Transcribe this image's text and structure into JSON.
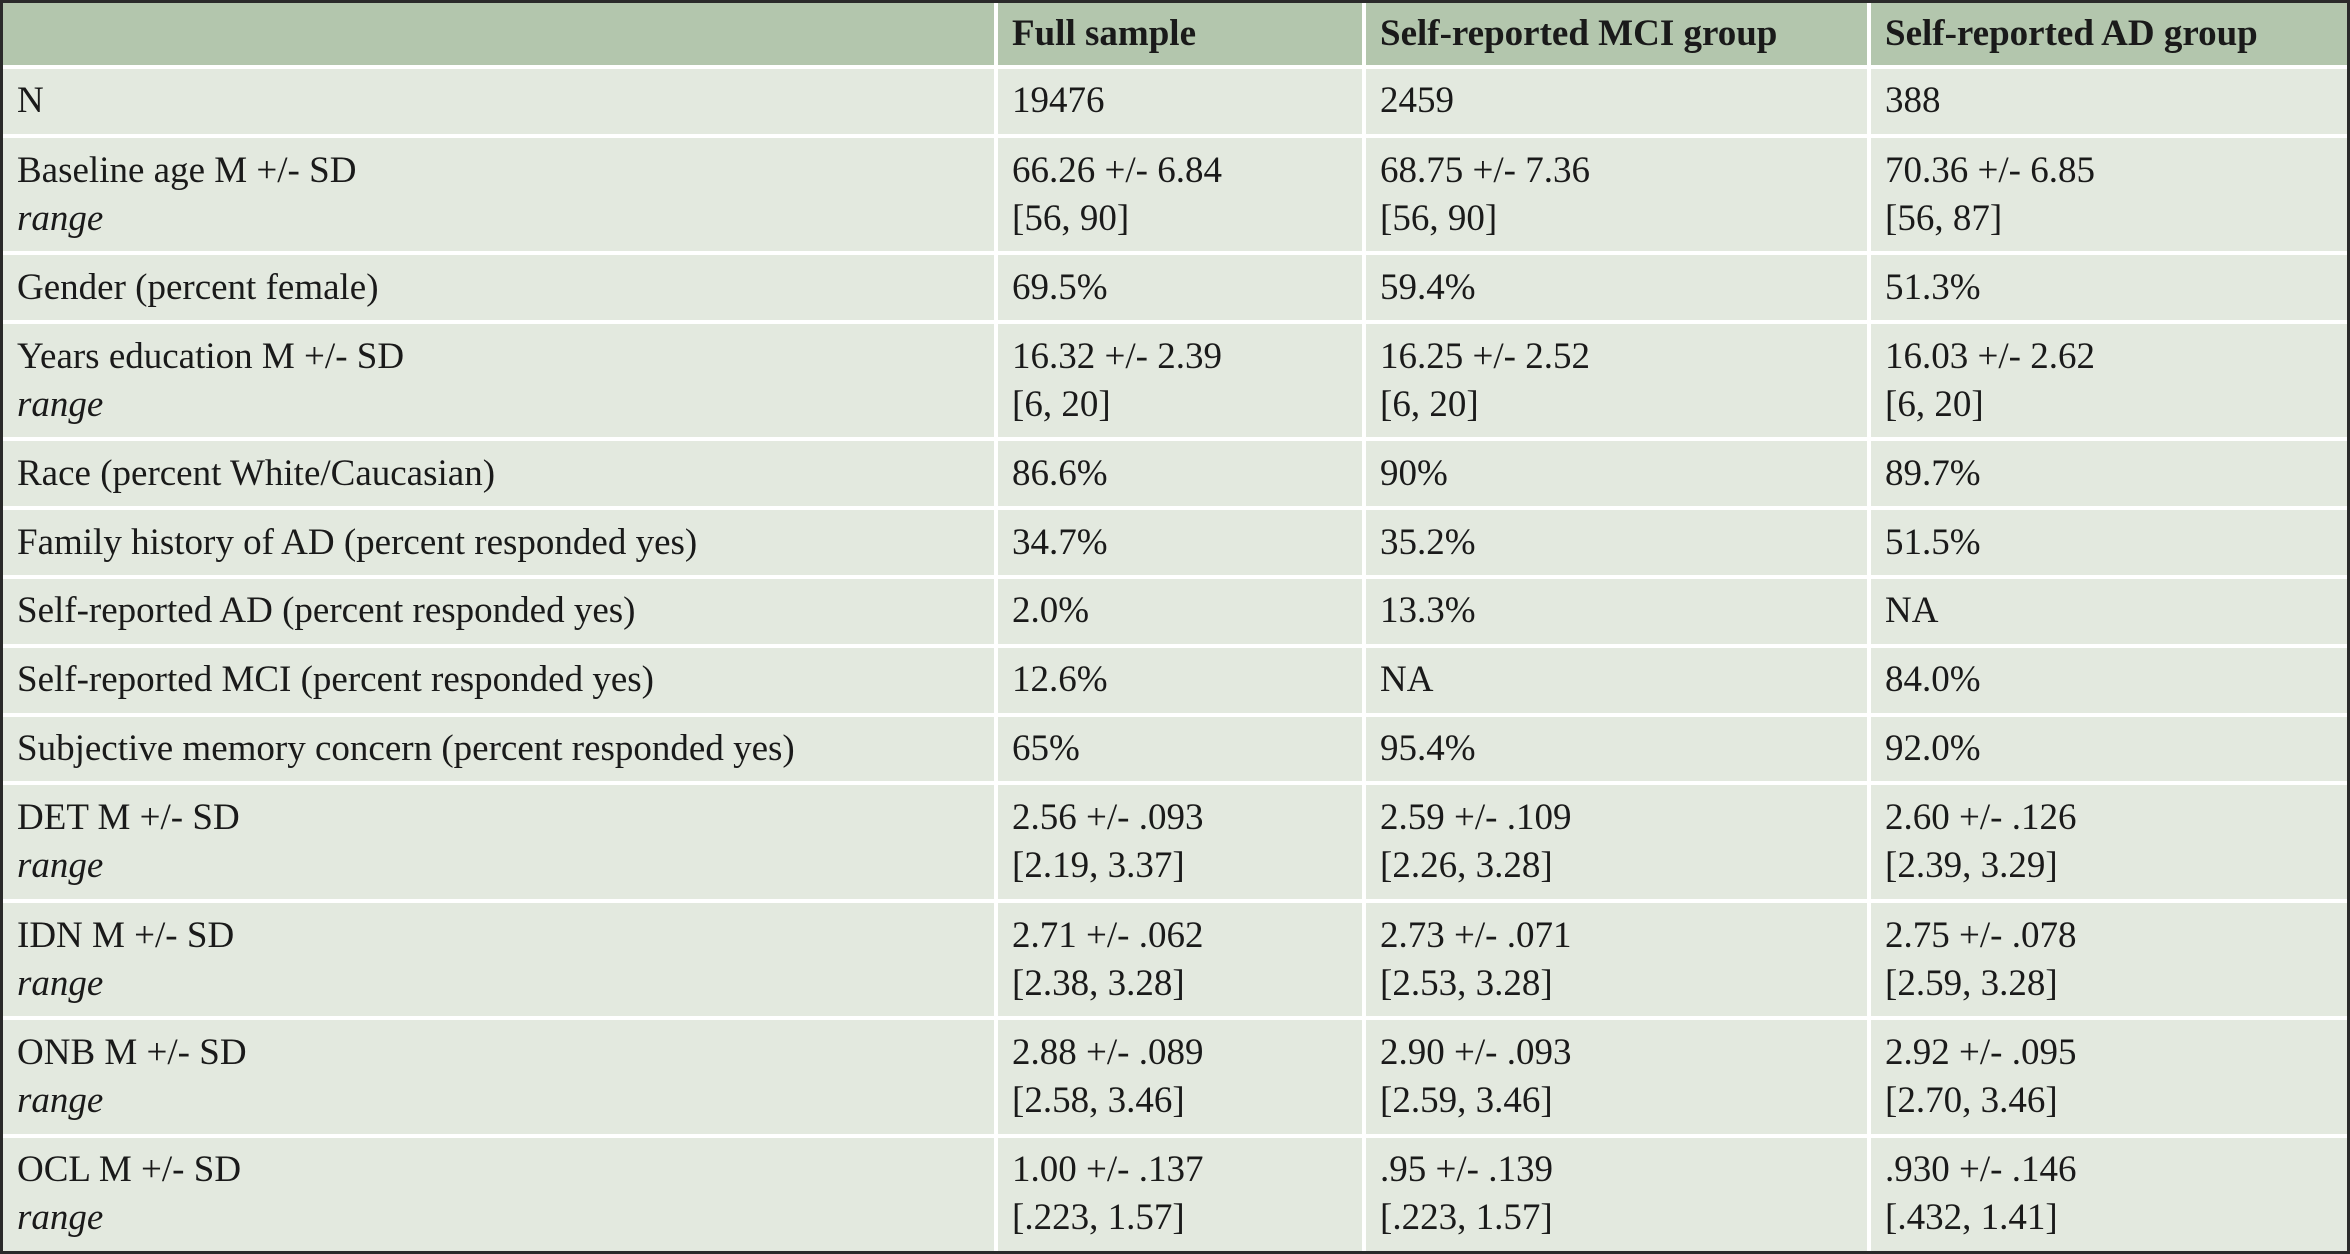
{
  "table": {
    "headers": [
      "",
      "Full sample",
      "Self-reported MCI group",
      "Self-reported AD group"
    ],
    "rows": [
      {
        "label": "N",
        "sub": "",
        "full": [
          "19476",
          ""
        ],
        "mci": [
          "2459",
          ""
        ],
        "ad": [
          "388",
          ""
        ]
      },
      {
        "label": "Baseline age M +/- SD",
        "sub": "range",
        "full": [
          "66.26 +/- 6.84",
          "[56, 90]"
        ],
        "mci": [
          "68.75 +/- 7.36",
          "[56, 90]"
        ],
        "ad": [
          "70.36 +/- 6.85",
          "[56, 87]"
        ]
      },
      {
        "label": "Gender (percent female)",
        "sub": "",
        "full": [
          "69.5%",
          ""
        ],
        "mci": [
          "59.4%",
          ""
        ],
        "ad": [
          "51.3%",
          ""
        ]
      },
      {
        "label": "Years education M +/- SD",
        "sub": "range",
        "full": [
          "16.32 +/- 2.39",
          "[6, 20]"
        ],
        "mci": [
          "16.25 +/- 2.52",
          "[6, 20]"
        ],
        "ad": [
          "16.03 +/- 2.62",
          "[6, 20]"
        ]
      },
      {
        "label": "Race (percent White/Caucasian)",
        "sub": "",
        "full": [
          "86.6%",
          ""
        ],
        "mci": [
          "90%",
          ""
        ],
        "ad": [
          "89.7%",
          ""
        ]
      },
      {
        "label": "Family history of AD (percent responded yes)",
        "sub": "",
        "full": [
          "34.7%",
          ""
        ],
        "mci": [
          "35.2%",
          ""
        ],
        "ad": [
          "51.5%",
          ""
        ]
      },
      {
        "label": "Self-reported AD (percent responded yes)",
        "sub": "",
        "full": [
          "2.0%",
          ""
        ],
        "mci": [
          "13.3%",
          ""
        ],
        "ad": [
          "NA",
          ""
        ]
      },
      {
        "label": "Self-reported MCI (percent responded yes)",
        "sub": "",
        "full": [
          "12.6%",
          ""
        ],
        "mci": [
          "NA",
          ""
        ],
        "ad": [
          "84.0%",
          ""
        ]
      },
      {
        "label": "Subjective memory concern (percent responded yes)",
        "sub": "",
        "full": [
          "65%",
          ""
        ],
        "mci": [
          "95.4%",
          ""
        ],
        "ad": [
          "92.0%",
          ""
        ]
      },
      {
        "label": "DET M +/- SD",
        "sub": "range",
        "full": [
          "2.56 +/- .093",
          "[2.19, 3.37]"
        ],
        "mci": [
          "2.59 +/- .109",
          "[2.26, 3.28]"
        ],
        "ad": [
          "2.60 +/- .126",
          "[2.39, 3.29]"
        ]
      },
      {
        "label": "IDN M +/- SD",
        "sub": "range",
        "full": [
          "2.71 +/- .062",
          "[2.38, 3.28]"
        ],
        "mci": [
          "2.73 +/- .071",
          "[2.53, 3.28]"
        ],
        "ad": [
          "2.75 +/- .078",
          "[2.59, 3.28]"
        ]
      },
      {
        "label": "ONB M +/- SD",
        "sub": "range",
        "full": [
          "2.88 +/- .089",
          "[2.58, 3.46]"
        ],
        "mci": [
          "2.90 +/- .093",
          "[2.59, 3.46]"
        ],
        "ad": [
          "2.92 +/- .095",
          "[2.70, 3.46]"
        ]
      },
      {
        "label": "OCL M +/- SD",
        "sub": "range",
        "full": [
          "1.00 +/- .137",
          "[.223, 1.57]"
        ],
        "mci": [
          ".95 +/- .139",
          "[.223, 1.57]"
        ],
        "ad": [
          ".930 +/- .146",
          "[.432, 1.41]"
        ]
      }
    ]
  },
  "colors": {
    "header_bg": "#b3c6ad",
    "body_bg": "#e3e9df",
    "grid_line": "#ffffff",
    "outer_border": "#2a2a2a"
  }
}
